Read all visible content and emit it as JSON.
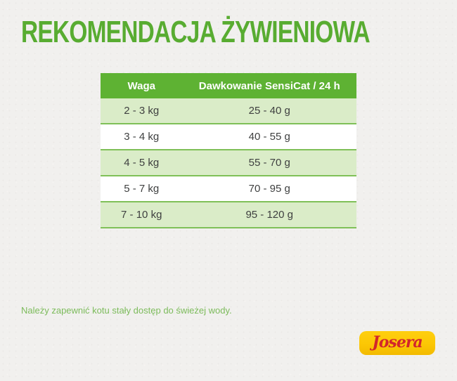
{
  "page": {
    "title": "REKOMENDACJA ŻYWIENIOWA",
    "note": "Należy zapewnić kotu stały dostęp do świeżej wody."
  },
  "table": {
    "columns": [
      "Waga",
      "Dawkowanie SensiCat / 24 h"
    ],
    "rows": [
      {
        "waga": "2 - 3 kg",
        "dawkowanie": "25 - 40 g"
      },
      {
        "waga": "3 - 4 kg",
        "dawkowanie": "40 - 55 g"
      },
      {
        "waga": "4 - 5 kg",
        "dawkowanie": "55 - 70 g"
      },
      {
        "waga": "5 - 7 kg",
        "dawkowanie": "70 - 95 g"
      },
      {
        "waga": "7 - 10 kg",
        "dawkowanie": "95 - 120 g"
      }
    ]
  },
  "logo": {
    "brand": "Josera"
  },
  "colors": {
    "background": "#f1f0ee",
    "heading_green": "#58ac31",
    "table_header_bg": "#5eb233",
    "row_alt_green": "#daecc8",
    "row_white": "#ffffff",
    "separator_green": "#7fc058",
    "cell_text": "#3f4040",
    "note_green": "#7cbb5b",
    "logo_yellow": "#fcc704",
    "logo_red": "#d2262b"
  }
}
